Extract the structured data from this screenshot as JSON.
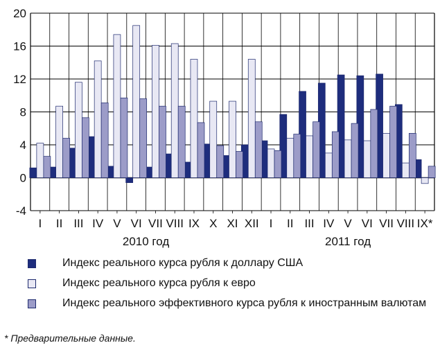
{
  "chart_data": {
    "type": "bar",
    "title": "",
    "xlabel": "",
    "ylabel": "",
    "ylim": [
      -4,
      20
    ],
    "yticks": [
      "20",
      "16",
      "12",
      "8",
      "4",
      "0",
      "-4"
    ],
    "grid": "vertical separators between months",
    "categories": [
      "I",
      "II",
      "III",
      "IV",
      "V",
      "VI",
      "VII",
      "VIII",
      "IX",
      "X",
      "XI",
      "XII",
      "I",
      "II",
      "III",
      "IV",
      "V",
      "VI",
      "VII",
      "VIII",
      "IX*"
    ],
    "year_labels": [
      {
        "label": "2010 год",
        "from": 0,
        "to": 11
      },
      {
        "label": "2011 год",
        "from": 12,
        "to": 20
      }
    ],
    "series": [
      {
        "name": "Индекс реального курса рубля к доллару США",
        "color": "#1e2d7d",
        "values": [
          1.2,
          1.3,
          3.6,
          5.0,
          1.4,
          -0.6,
          1.3,
          2.9,
          1.9,
          4.1,
          2.7,
          4.0,
          4.5,
          7.7,
          10.5,
          11.5,
          12.5,
          12.4,
          12.6,
          8.9,
          2.2
        ]
      },
      {
        "name": "Индекс реального курса рубля к евро",
        "color": "#e8e8f4",
        "values": [
          4.2,
          8.7,
          11.6,
          14.2,
          17.4,
          18.5,
          16.1,
          16.3,
          14.4,
          9.3,
          9.3,
          14.4,
          3.5,
          4.8,
          5.1,
          3.0,
          4.6,
          4.5,
          5.4,
          1.8,
          -0.7
        ]
      },
      {
        "name": "Индекс реального эффективного курса рубля к иностранным валютам",
        "color": "#9c9cc8",
        "values": [
          2.6,
          4.8,
          7.3,
          9.1,
          9.7,
          9.6,
          8.7,
          8.7,
          6.7,
          3.9,
          3.2,
          6.8,
          3.3,
          5.3,
          6.8,
          5.6,
          6.6,
          8.3,
          8.7,
          5.4,
          1.4
        ]
      }
    ],
    "legend_position": "bottom"
  },
  "footnote": "* Предварительные данные."
}
